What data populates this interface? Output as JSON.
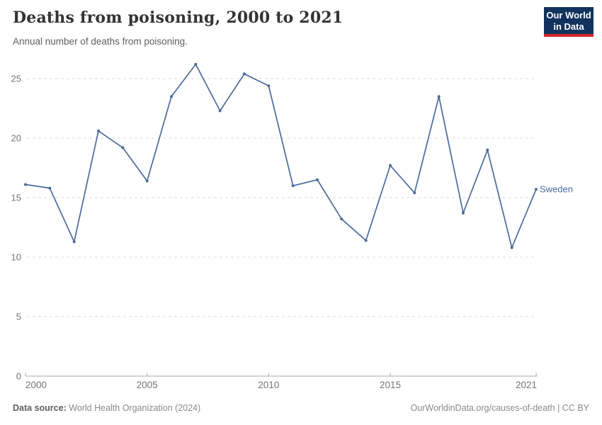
{
  "header": {
    "title": "Deaths from poisoning, 2000 to 2021",
    "subtitle": "Annual number of deaths from poisoning.",
    "logo": {
      "line1": "Our World",
      "line2": "in Data",
      "bg_color": "#12335E",
      "accent_color": "#D6292E"
    }
  },
  "footer": {
    "source_label": "Data source:",
    "source_text": " World Health Organization (2024)",
    "credit": "OurWorldinData.org/causes-of-death | CC BY"
  },
  "colors": {
    "series_blue": "#4C6A9C",
    "grid_gray": "#dedede",
    "axis_gray": "#a8a8a8",
    "tick_label_gray": "#757575"
  },
  "chart_data": {
    "type": "line",
    "title": "Deaths from poisoning, 2000 to 2021",
    "xlabel": "",
    "ylabel": "Annual number of deaths from poisoning",
    "xlim": [
      2000,
      2021
    ],
    "ylim": [
      0,
      26.5
    ],
    "xticks": [
      2000,
      2005,
      2010,
      2015,
      2021
    ],
    "yticks": [
      0,
      5,
      10,
      15,
      20,
      25
    ],
    "grid": "horizontal-dashed",
    "legend_position": "end-of-line-label",
    "x": [
      2000,
      2001,
      2002,
      2003,
      2004,
      2005,
      2006,
      2007,
      2008,
      2009,
      2010,
      2011,
      2012,
      2013,
      2014,
      2015,
      2016,
      2017,
      2018,
      2019,
      2020,
      2021
    ],
    "series": [
      {
        "name": "Sweden",
        "color": "#4C6A9C",
        "values": [
          16.1,
          15.8,
          11.3,
          20.6,
          19.2,
          16.4,
          23.5,
          26.2,
          22.3,
          25.4,
          24.4,
          16.0,
          16.5,
          13.2,
          11.4,
          17.7,
          15.4,
          23.5,
          13.7,
          19.0,
          10.8,
          15.7
        ]
      }
    ]
  }
}
